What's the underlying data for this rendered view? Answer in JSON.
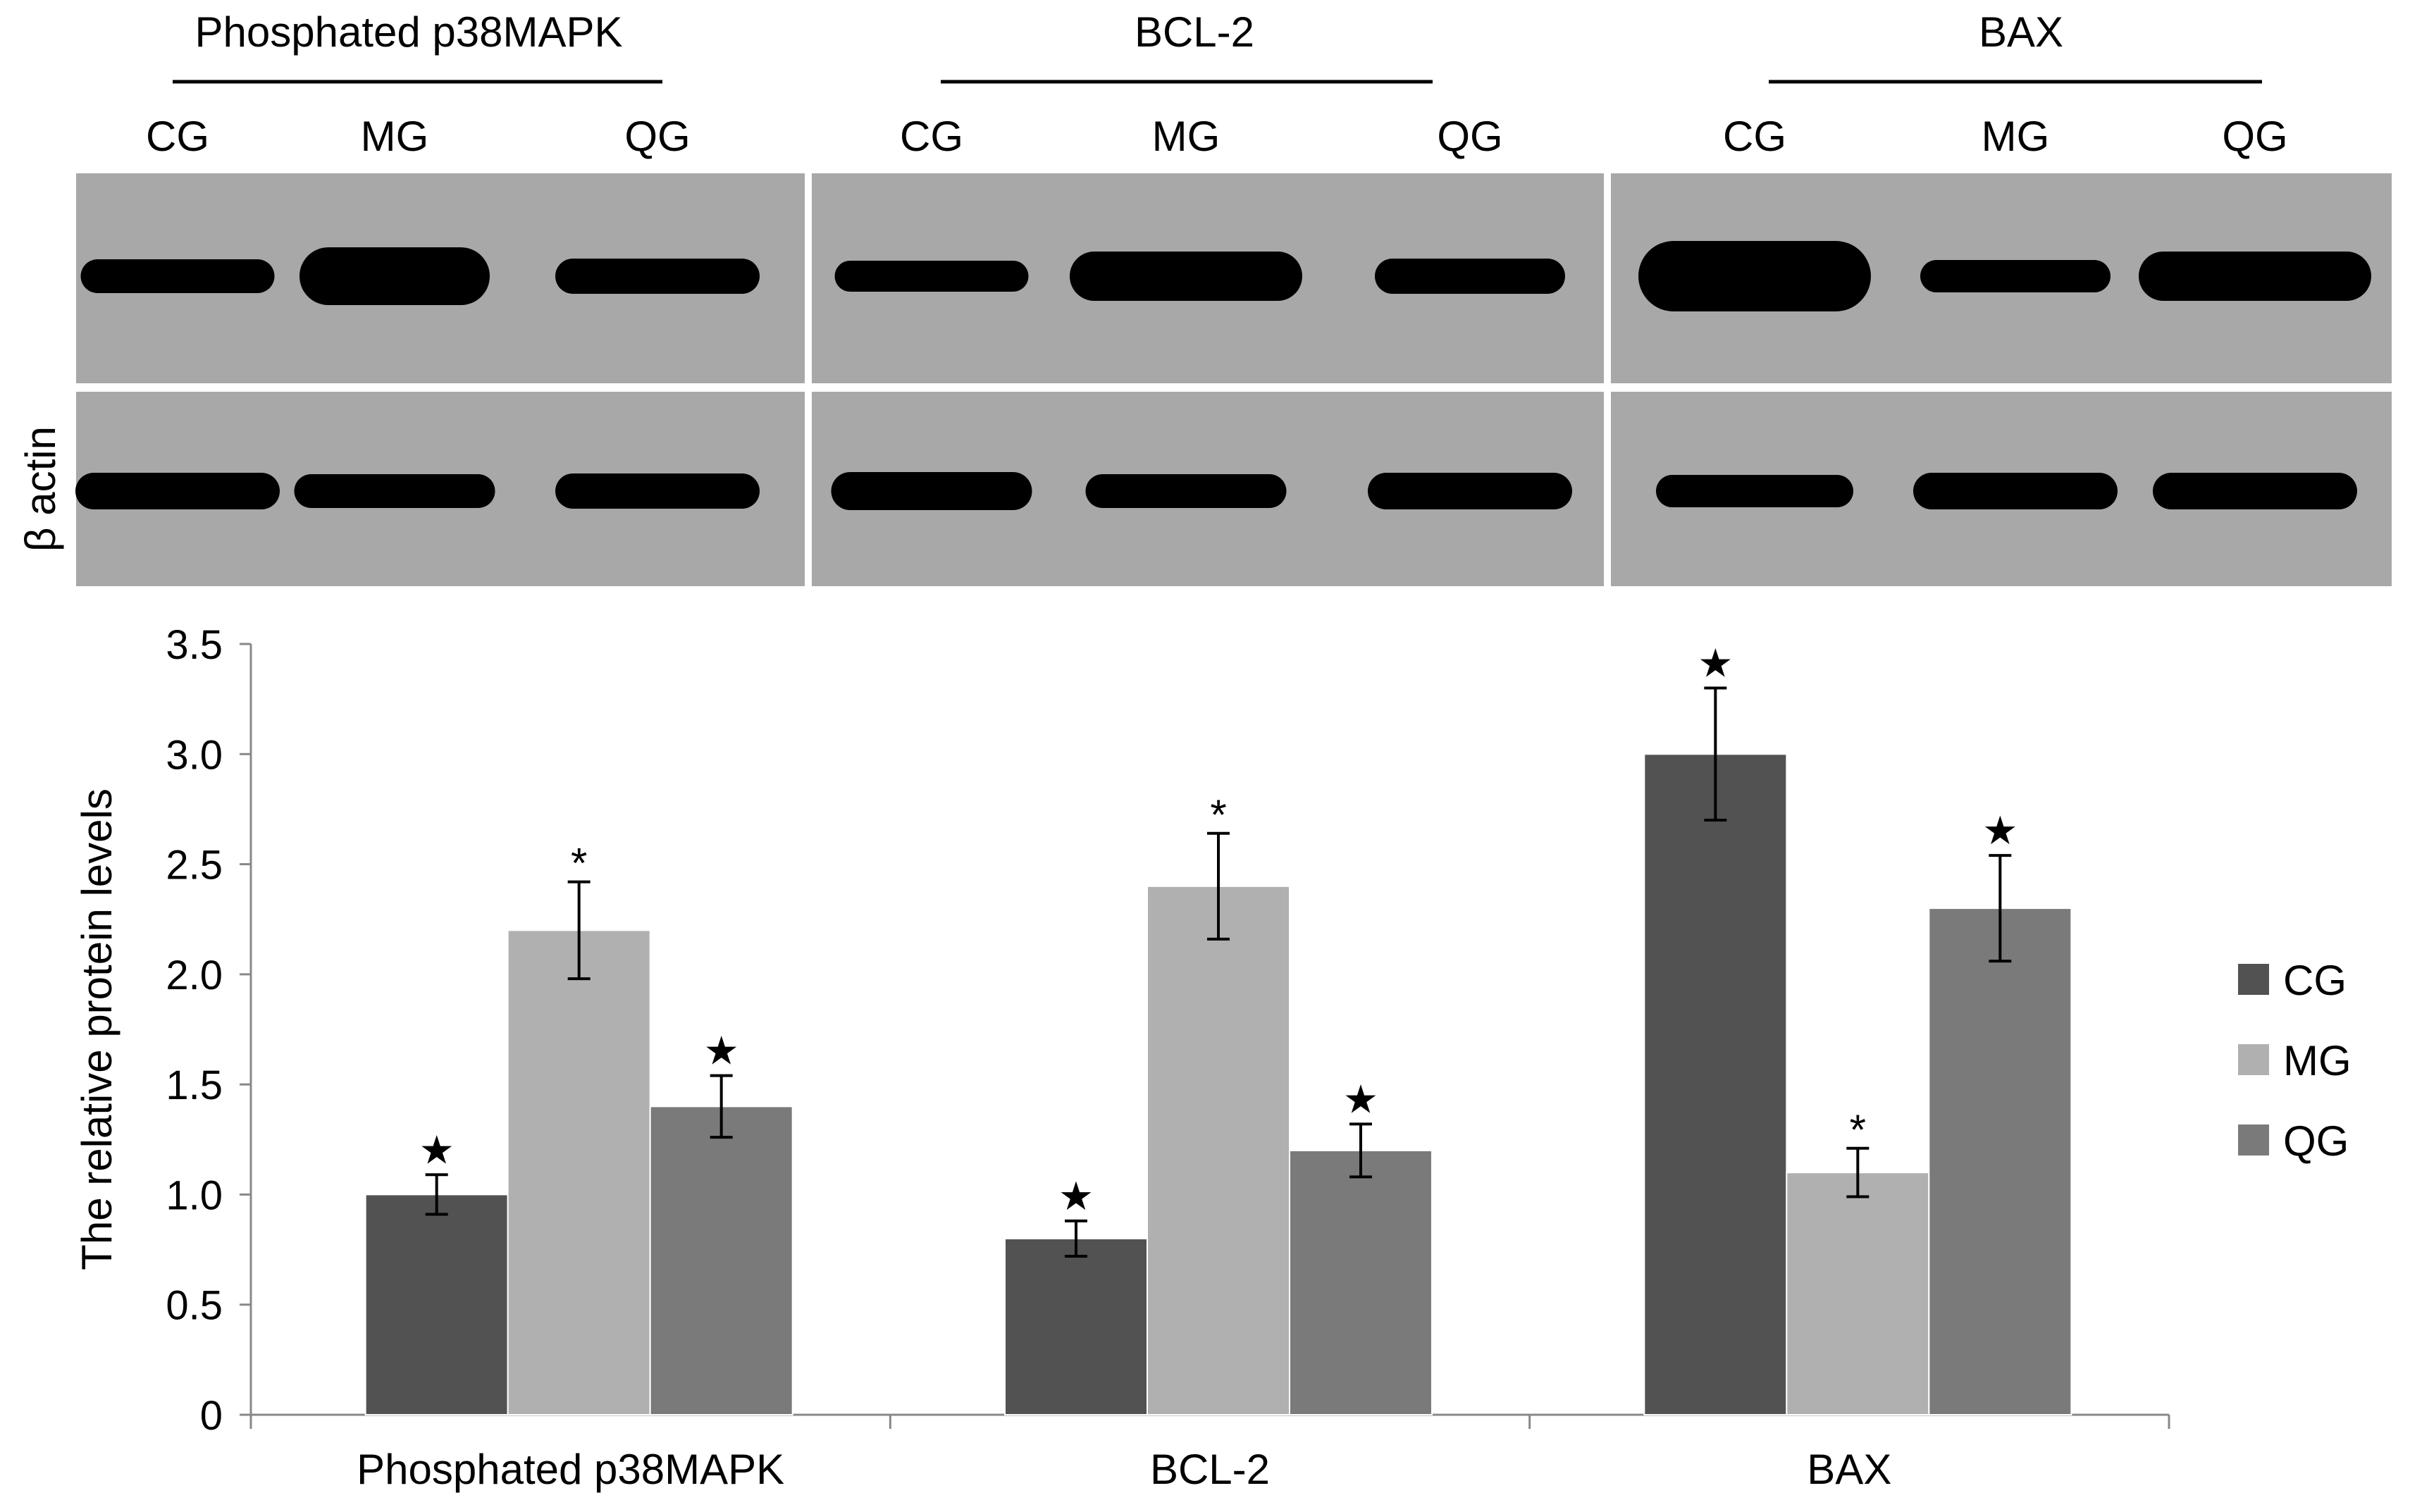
{
  "blot": {
    "groups": [
      {
        "title": "Phosphated p38MAPK",
        "lanes": [
          "CG",
          "MG",
          "QG"
        ]
      },
      {
        "title": "BCL-2",
        "lanes": [
          "CG",
          "MG",
          "QG"
        ]
      },
      {
        "title": "BAX",
        "lanes": [
          "CG",
          "MG",
          "QG"
        ]
      }
    ],
    "loading_control_label": "β actin",
    "panel_color": "#a8a8a8",
    "band_color": "#000000"
  },
  "chart_data": {
    "type": "bar",
    "categories": [
      "Phosphated p38MAPK",
      "BCL-2",
      "BAX"
    ],
    "series": [
      {
        "name": "CG",
        "values": [
          1.0,
          0.8,
          3.0
        ],
        "errors": [
          0.09,
          0.08,
          0.3
        ],
        "markers": [
          "★",
          "★",
          "★"
        ],
        "color": "#525252"
      },
      {
        "name": "MG",
        "values": [
          2.2,
          2.4,
          1.1
        ],
        "errors": [
          0.22,
          0.24,
          0.11
        ],
        "markers": [
          "*",
          "*",
          "*"
        ],
        "color": "#b0b0b0"
      },
      {
        "name": "QG",
        "values": [
          1.4,
          1.2,
          2.3
        ],
        "errors": [
          0.14,
          0.12,
          0.24
        ],
        "markers": [
          "★",
          "★",
          "★"
        ],
        "color": "#7a7a7a"
      }
    ],
    "ylabel": "The relative protein levels",
    "xlabel": "",
    "ylim": [
      0,
      3.5
    ],
    "yticks": [
      "0",
      "0.5",
      "1.0",
      "1.5",
      "2.0",
      "2.5",
      "3.0",
      "3.5"
    ],
    "grid": false,
    "legend_position": "right"
  }
}
